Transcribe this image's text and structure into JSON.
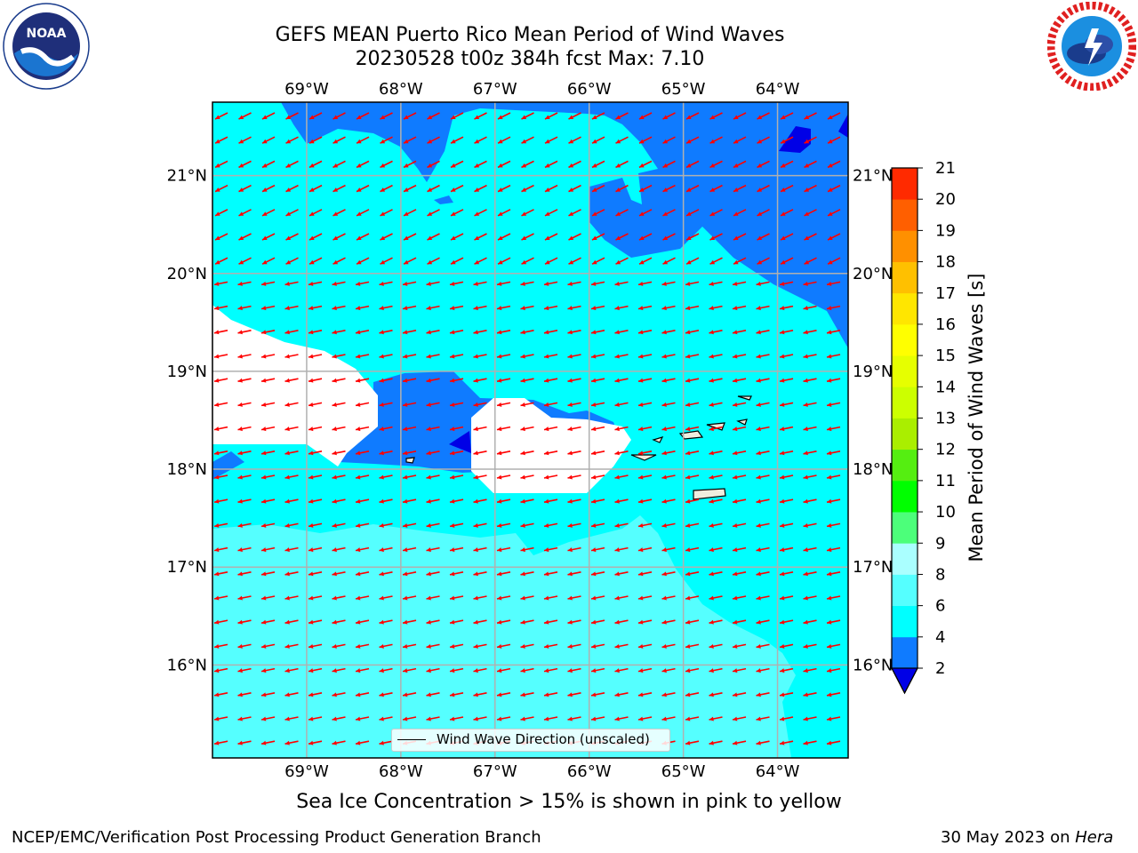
{
  "title": {
    "line1": "GEFS MEAN Puerto Rico Mean Period of Wind Waves",
    "line2": "20230528 t00z 384h fcst   Max: 7.10"
  },
  "logos": {
    "left": "noaa-logo",
    "left_text": "NOAA",
    "right": "national-weather-service-logo"
  },
  "map": {
    "projection": "plate-carree",
    "lon_ticks": [
      "69°W",
      "68°W",
      "67°W",
      "66°W",
      "65°W",
      "64°W"
    ],
    "lat_ticks": [
      "21°N",
      "20°N",
      "19°N",
      "18°N",
      "17°N",
      "16°N"
    ],
    "lon_values": [
      -69,
      -68,
      -67,
      -66,
      -65,
      -64
    ],
    "lat_values": [
      21,
      20,
      19,
      18,
      17,
      16
    ],
    "extent": {
      "lon": [
        -70.0,
        -63.25
      ],
      "lat": [
        15.05,
        21.75
      ]
    },
    "gridlines": true,
    "field_colors": {
      "deep_blue": "#0000e6",
      "blue": "#0f7bff",
      "cyan": "#00ffff",
      "light_cyan": "#55ffff",
      "land": "#efedde",
      "arrows": "#ff0000"
    }
  },
  "legend": {
    "label": "Wind Wave Direction (unscaled)",
    "placement": "lower-center"
  },
  "colorbar": {
    "label": "Mean Period of Wind Waves [s]",
    "levels": [
      2,
      4,
      6,
      8,
      9,
      10,
      11,
      12,
      13,
      14,
      15,
      16,
      17,
      18,
      19,
      20,
      21
    ],
    "colors": [
      "#0f7bff",
      "#00ffff",
      "#55ffff",
      "#aaffff",
      "#4cff7a",
      "#00ff00",
      "#55ee11",
      "#aaee00",
      "#ccff00",
      "#e6ff00",
      "#ffff00",
      "#ffe600",
      "#ffc000",
      "#ff9000",
      "#ff5f00",
      "#ff2a00"
    ],
    "under_color": "#0000e6"
  },
  "notes": {
    "sea_ice": "Sea Ice Concentration > 15% is shown in pink to yellow"
  },
  "footer": {
    "left": "NCEP/EMC/Verification Post Processing Product Generation Branch",
    "date": "30 May 2023 on",
    "machine": "Hera"
  }
}
